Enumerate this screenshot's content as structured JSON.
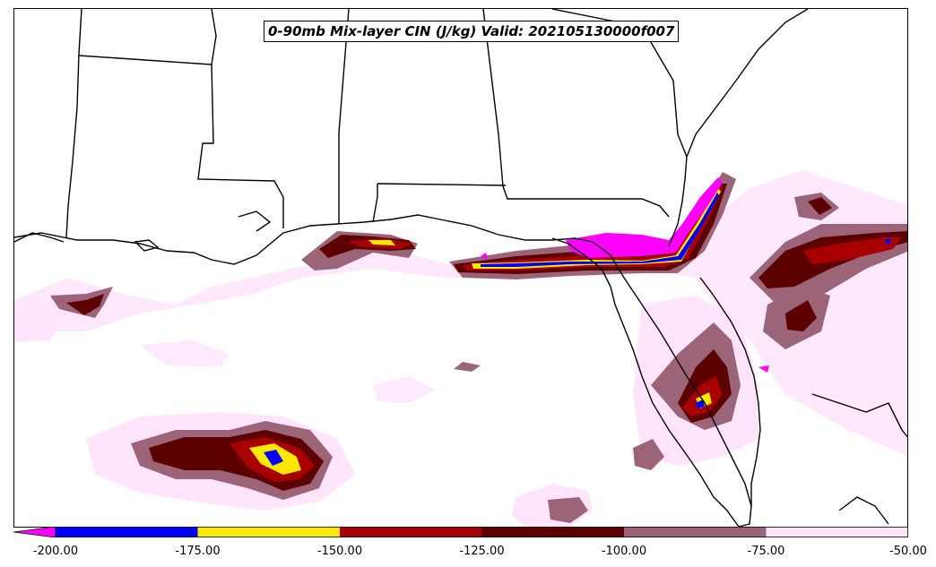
{
  "title": "0-90mb Mix-layer CIN (J/kg) Valid: 202105130000f007",
  "colorbar": {
    "extend_color": "#ff00ff",
    "bins": [
      {
        "from": -200,
        "to": -175,
        "color": "#0000ff"
      },
      {
        "from": -175,
        "to": -150,
        "color": "#ffe800"
      },
      {
        "from": -150,
        "to": -125,
        "color": "#a80000"
      },
      {
        "from": -125,
        "to": -100,
        "color": "#5c0000"
      },
      {
        "from": -100,
        "to": -75,
        "color": "#9c6478"
      },
      {
        "from": -75,
        "to": -50,
        "color": "#ffe4fc"
      }
    ],
    "tick_labels": [
      "-200.00",
      "-175.00",
      "-150.00",
      "-125.00",
      "-100.00",
      "-75.00",
      "-50.00"
    ]
  },
  "colors": {
    "very_light": "#ffe4fc",
    "mauve": "#9c6478",
    "dark_red": "#5c0000",
    "red": "#a80000",
    "yellow": "#ffe800",
    "blue": "#0000ff",
    "magenta": "#ff00ff",
    "outline": "#000000"
  }
}
